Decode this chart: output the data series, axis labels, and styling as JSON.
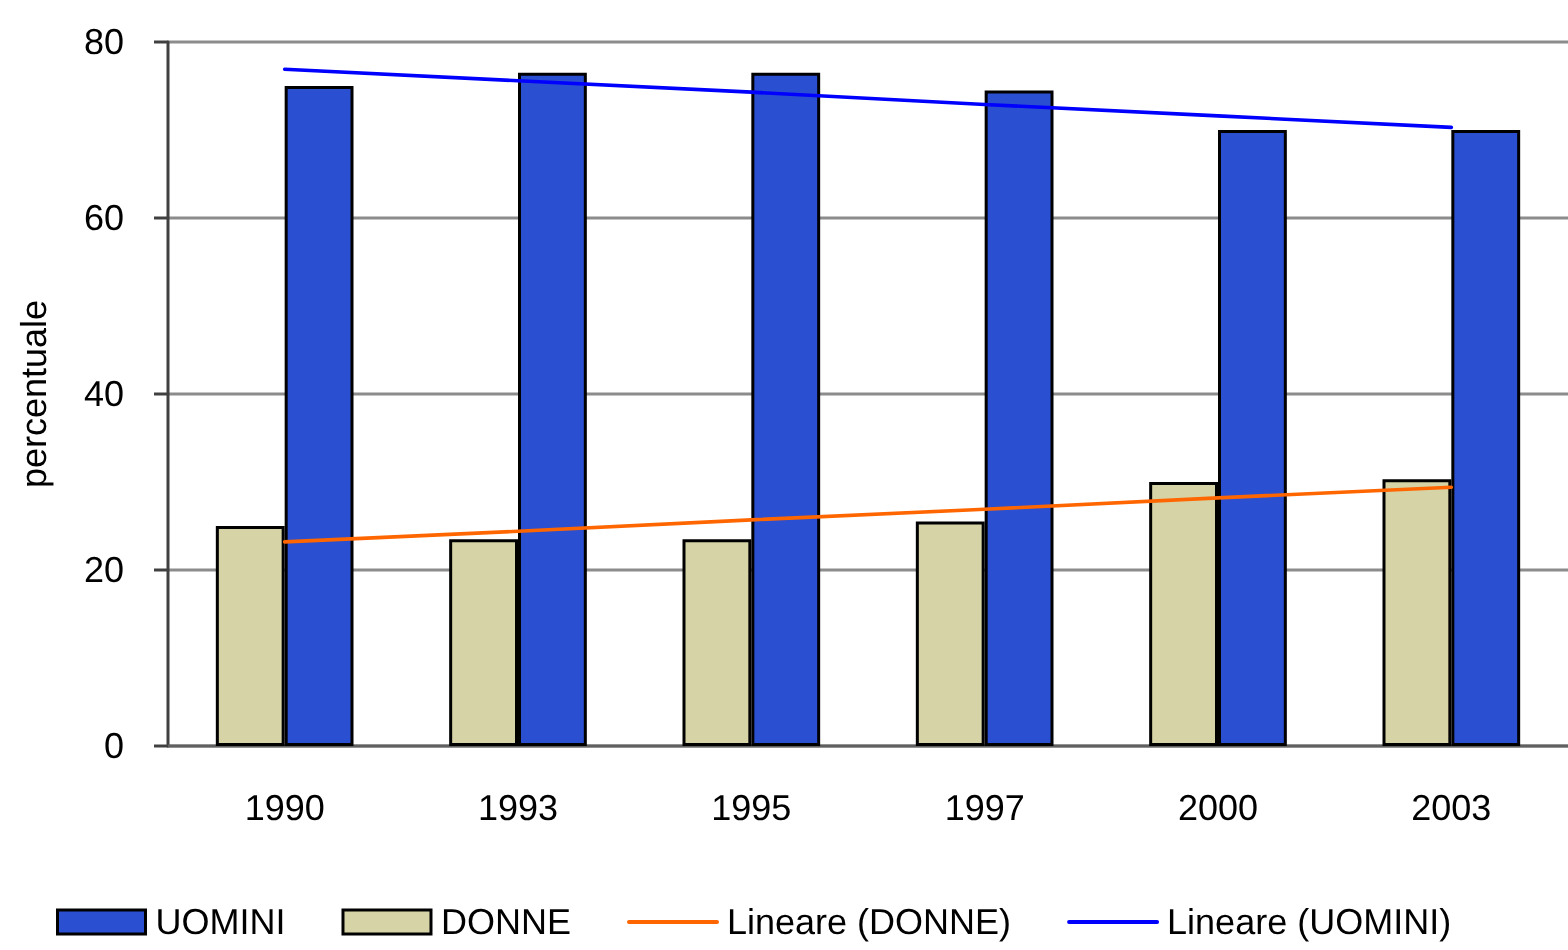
{
  "chart_data": {
    "type": "bar",
    "ylabel": "percentuale",
    "categories": [
      "1990",
      "1993",
      "1995",
      "1997",
      "2000",
      "2003"
    ],
    "series": [
      {
        "name": "DONNE",
        "color": "#d6d4a6",
        "values": [
          25,
          23.5,
          23.5,
          25.5,
          30,
          30.3
        ]
      },
      {
        "name": "UOMINI",
        "color": "#2a4fd0",
        "values": [
          75,
          76.5,
          76.5,
          74.5,
          70,
          70
        ]
      },
      {
        "name": "Lineare (DONNE)",
        "type": "line",
        "color": "#ff6600",
        "values": [
          23.2,
          24.4,
          25.7,
          26.9,
          28.2,
          29.4
        ]
      },
      {
        "name": "Lineare (UOMINI)",
        "type": "line",
        "color": "#0000ff",
        "values": [
          76.9,
          75.6,
          74.3,
          72.9,
          71.6,
          70.3
        ]
      }
    ],
    "ylim": [
      0,
      80
    ],
    "yticks": [
      0,
      20,
      40,
      60,
      80
    ],
    "grid": "y",
    "legend": "bottom"
  }
}
